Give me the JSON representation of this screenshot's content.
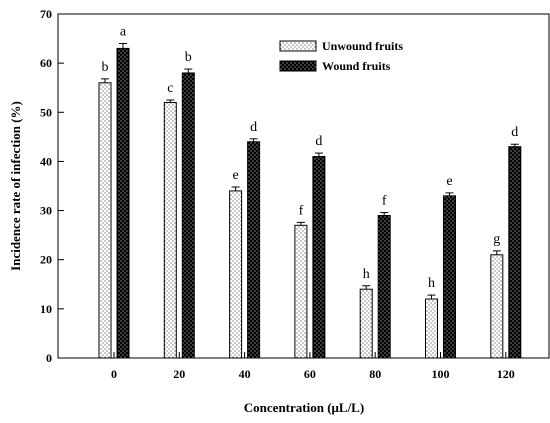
{
  "chart_data": {
    "type": "bar",
    "xlabel": "Concentration (μL/L)",
    "ylabel": "Incidence rate of infection (%)",
    "ylim": [
      0,
      70
    ],
    "yticks": [
      0,
      10,
      20,
      30,
      40,
      50,
      60,
      70
    ],
    "categories": [
      "0",
      "20",
      "40",
      "60",
      "80",
      "100",
      "120"
    ],
    "legend_position": "top-right",
    "series": [
      {
        "name": "Unwound fruits",
        "values": [
          56,
          52,
          34,
          27,
          14,
          12,
          21
        ],
        "errors": [
          0.8,
          0.5,
          0.8,
          0.6,
          0.7,
          0.8,
          0.8
        ],
        "letters": [
          "b",
          "c",
          "e",
          "f",
          "h",
          "h",
          "g"
        ],
        "pattern": "dotted-white",
        "color": "#ffffff"
      },
      {
        "name": "Wound fruits",
        "values": [
          63,
          58,
          44,
          41,
          29,
          33,
          43
        ],
        "errors": [
          1.0,
          0.8,
          0.6,
          0.7,
          0.6,
          0.6,
          0.5
        ],
        "letters": [
          "a",
          "b",
          "d",
          "d",
          "f",
          "e",
          "d"
        ],
        "pattern": "dotted-black",
        "color": "#000000"
      }
    ]
  }
}
